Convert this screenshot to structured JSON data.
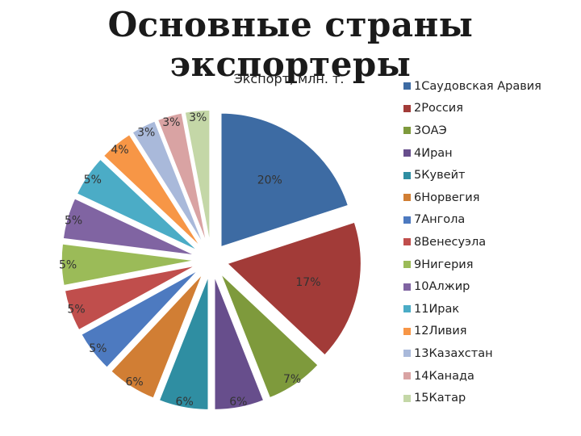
{
  "slide_title": "Основные страны экспортеры",
  "chart_data": {
    "type": "pie",
    "title": "Экспорт, млн. т.",
    "start_angle_deg": 0,
    "explode": true,
    "legend_position": "right",
    "slices": [
      {
        "legend": "1Саудовская Аравия",
        "label": "20%",
        "value": 20,
        "color": "#3D6BA3"
      },
      {
        "legend": "2Россия",
        "label": "17%",
        "value": 17,
        "color": "#A23B38"
      },
      {
        "legend": "3ОАЭ",
        "label": "7%",
        "value": 7,
        "color": "#7E9A3C"
      },
      {
        "legend": "4Иран",
        "label": "6%",
        "value": 6,
        "color": "#674E8C"
      },
      {
        "legend": "5Кувейт",
        "label": "6%",
        "value": 6,
        "color": "#2F8EA2"
      },
      {
        "legend": "6Норвегия",
        "label": "6%",
        "value": 6,
        "color": "#D17E34"
      },
      {
        "legend": "7Ангола",
        "label": "5%",
        "value": 5,
        "color": "#4D7AC0"
      },
      {
        "legend": "8Венесуэла",
        "label": "5%",
        "value": 5,
        "color": "#C04E4C"
      },
      {
        "legend": "9Нигерия",
        "label": "5%",
        "value": 5,
        "color": "#9BBB58"
      },
      {
        "legend": "10Алжир",
        "label": "5%",
        "value": 5,
        "color": "#8064A2"
      },
      {
        "legend": "11Ирак",
        "label": "5%",
        "value": 5,
        "color": "#4BACC6"
      },
      {
        "legend": "12Ливия",
        "label": "4%",
        "value": 4,
        "color": "#F79646"
      },
      {
        "legend": "13Казахстан",
        "label": "3%",
        "value": 3,
        "color": "#A9B9DA"
      },
      {
        "legend": "14Канада",
        "label": "3%",
        "value": 3,
        "color": "#D9A3A3"
      },
      {
        "legend": "15Катар",
        "label": "3%",
        "value": 3,
        "color": "#C4D7A7"
      }
    ]
  }
}
